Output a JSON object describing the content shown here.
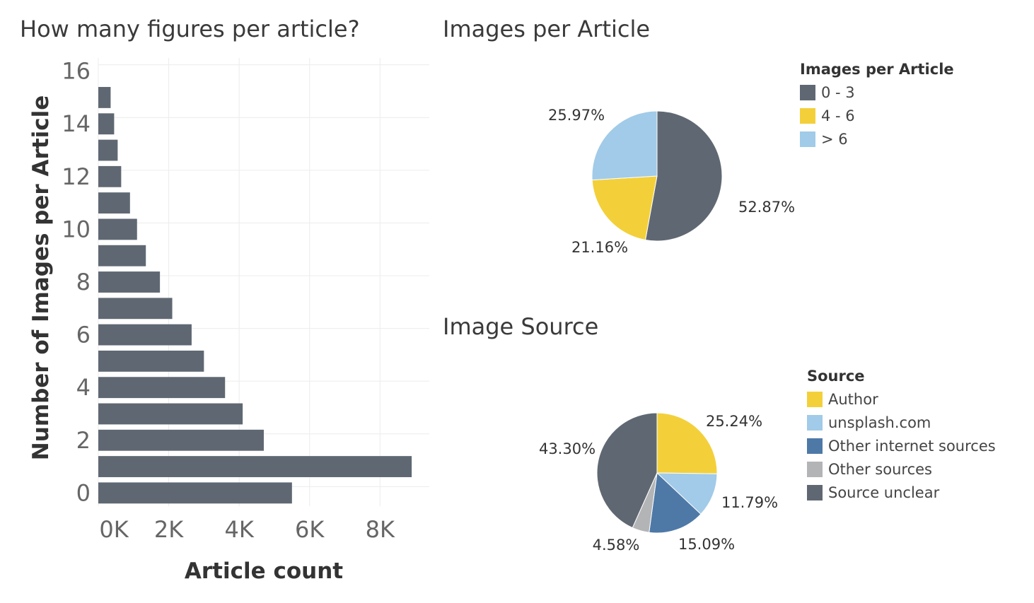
{
  "colors": {
    "dark_gray": "#5f6872",
    "yellow": "#f3d03a",
    "light_blue": "#a1cbe8",
    "mid_blue": "#4e79a7",
    "light_gray": "#b2b4b6",
    "grid": "#ececec",
    "axis_text": "#666666"
  },
  "chart_data": [
    {
      "type": "bar",
      "orientation": "horizontal",
      "title": "How many figures per article?",
      "xlabel": "Article count",
      "ylabel": "Number of Images per Article",
      "categories": [
        0,
        1,
        2,
        3,
        4,
        5,
        6,
        7,
        8,
        9,
        10,
        11,
        12,
        13,
        14,
        15
      ],
      "values": [
        5500,
        8900,
        4700,
        4100,
        3600,
        3000,
        2650,
        2100,
        1750,
        1350,
        1100,
        900,
        650,
        550,
        450,
        350
      ],
      "xlim": [
        0,
        9400
      ],
      "ylim": [
        -0.5,
        16.5
      ],
      "x_ticks": [
        0,
        2000,
        4000,
        6000,
        8000
      ],
      "x_tick_labels": [
        "0K",
        "2K",
        "4K",
        "6K",
        "8K"
      ],
      "y_ticks": [
        0,
        2,
        4,
        6,
        8,
        10,
        12,
        14,
        16
      ],
      "y_tick_labels": [
        "0",
        "2",
        "4",
        "6",
        "8",
        "10",
        "12",
        "14",
        "16"
      ],
      "grid": true
    },
    {
      "type": "pie",
      "title": "Images per Article",
      "legend_title": "Images per Article",
      "legend_position": "top-right",
      "slices": [
        {
          "label": "0 - 3",
          "value": 52.87,
          "value_label": "52.87%",
          "color": "#5f6872"
        },
        {
          "label": "4 - 6",
          "value": 21.16,
          "value_label": "21.16%",
          "color": "#f3d03a"
        },
        {
          "label": "> 6",
          "value": 25.97,
          "value_label": "25.97%",
          "color": "#a1cbe8"
        }
      ]
    },
    {
      "type": "pie",
      "title": "Image Source",
      "legend_title": "Source",
      "legend_position": "right",
      "slices": [
        {
          "label": "Author",
          "value": 25.24,
          "value_label": "25.24%",
          "color": "#f3d03a"
        },
        {
          "label": "unsplash.com",
          "value": 11.79,
          "value_label": "11.79%",
          "color": "#a1cbe8"
        },
        {
          "label": "Other internet sources",
          "value": 15.09,
          "value_label": "15.09%",
          "color": "#4e79a7"
        },
        {
          "label": "Other sources",
          "value": 4.58,
          "value_label": "4.58%",
          "color": "#b2b4b6"
        },
        {
          "label": "Source unclear",
          "value": 43.3,
          "value_label": "43.30%",
          "color": "#5f6872"
        }
      ]
    }
  ]
}
